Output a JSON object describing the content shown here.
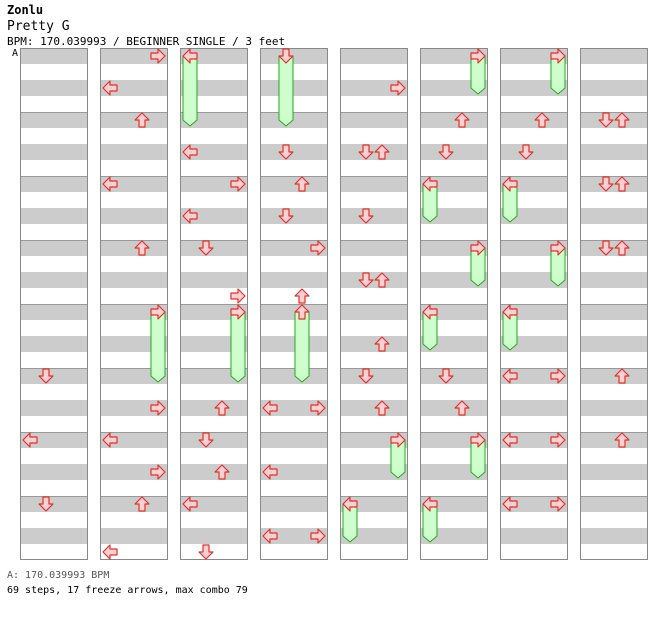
{
  "header": {
    "artist": "Zonlu",
    "title": "Pretty G",
    "info": "BPM: 170.039993 / BEGINNER SINGLE / 3 feet"
  },
  "bpm_marker": {
    "label": "A"
  },
  "footer": {
    "bpm_legend": "A: 170.039993 BPM",
    "stats": "69 steps, 17 freeze arrows, max combo 79"
  },
  "colors": {
    "stripe": "#cccccc",
    "lane_border": "#888888",
    "arrow_fill": "#ffd0d0",
    "arrow_stroke": "#e03030",
    "freeze_fill": "#ccffcc",
    "freeze_stroke": "#22aa22"
  },
  "chart_data": {
    "type": "step-chart",
    "columns": 8,
    "measures_per_column": 8,
    "lanes": [
      "left",
      "down",
      "up",
      "right"
    ],
    "notes": [
      {
        "c": 0,
        "m": 5,
        "b": 0,
        "d": "down"
      },
      {
        "c": 0,
        "m": 6,
        "b": 0,
        "d": "left"
      },
      {
        "c": 0,
        "m": 7,
        "b": 0,
        "d": "down"
      },
      {
        "c": 1,
        "m": 0,
        "b": 0,
        "d": "right"
      },
      {
        "c": 1,
        "m": 0,
        "b": 2,
        "d": "left"
      },
      {
        "c": 1,
        "m": 1,
        "b": 0,
        "d": "up"
      },
      {
        "c": 1,
        "m": 2,
        "b": 0,
        "d": "left"
      },
      {
        "c": 1,
        "m": 3,
        "b": 0,
        "d": "up"
      },
      {
        "c": 1,
        "m": 4,
        "b": 0,
        "d": "right",
        "len": 4
      },
      {
        "c": 1,
        "m": 5,
        "b": 2,
        "d": "right"
      },
      {
        "c": 1,
        "m": 6,
        "b": 0,
        "d": "left"
      },
      {
        "c": 1,
        "m": 6,
        "b": 2,
        "d": "right"
      },
      {
        "c": 1,
        "m": 7,
        "b": 0,
        "d": "up"
      },
      {
        "c": 1,
        "m": 7,
        "b": 3,
        "d": "left"
      },
      {
        "c": 2,
        "m": 0,
        "b": 0,
        "d": "left",
        "len": 4
      },
      {
        "c": 2,
        "m": 1,
        "b": 2,
        "d": "left"
      },
      {
        "c": 2,
        "m": 2,
        "b": 0,
        "d": "right"
      },
      {
        "c": 2,
        "m": 2,
        "b": 2,
        "d": "left"
      },
      {
        "c": 2,
        "m": 3,
        "b": 0,
        "d": "down"
      },
      {
        "c": 2,
        "m": 3,
        "b": 3,
        "d": "right"
      },
      {
        "c": 2,
        "m": 4,
        "b": 0,
        "d": "right",
        "len": 4
      },
      {
        "c": 2,
        "m": 5,
        "b": 2,
        "d": "up"
      },
      {
        "c": 2,
        "m": 6,
        "b": 0,
        "d": "down"
      },
      {
        "c": 2,
        "m": 6,
        "b": 2,
        "d": "up"
      },
      {
        "c": 2,
        "m": 7,
        "b": 0,
        "d": "left"
      },
      {
        "c": 2,
        "m": 7,
        "b": 3,
        "d": "down"
      },
      {
        "c": 3,
        "m": 0,
        "b": 0,
        "d": "down",
        "len": 4
      },
      {
        "c": 3,
        "m": 1,
        "b": 2,
        "d": "down"
      },
      {
        "c": 3,
        "m": 2,
        "b": 0,
        "d": "up"
      },
      {
        "c": 3,
        "m": 2,
        "b": 2,
        "d": "down"
      },
      {
        "c": 3,
        "m": 3,
        "b": 0,
        "d": "right"
      },
      {
        "c": 3,
        "m": 3,
        "b": 3,
        "d": "up"
      },
      {
        "c": 3,
        "m": 4,
        "b": 0,
        "d": "up",
        "len": 4
      },
      {
        "c": 3,
        "m": 5,
        "b": 2,
        "d": "left"
      },
      {
        "c": 3,
        "m": 5,
        "b": 2,
        "d": "right"
      },
      {
        "c": 3,
        "m": 6,
        "b": 2,
        "d": "left"
      },
      {
        "c": 3,
        "m": 7,
        "b": 2,
        "d": "left"
      },
      {
        "c": 3,
        "m": 7,
        "b": 2,
        "d": "right"
      },
      {
        "c": 4,
        "m": 0,
        "b": 2,
        "d": "right"
      },
      {
        "c": 4,
        "m": 1,
        "b": 2,
        "d": "down"
      },
      {
        "c": 4,
        "m": 1,
        "b": 2,
        "d": "up"
      },
      {
        "c": 4,
        "m": 2,
        "b": 2,
        "d": "down"
      },
      {
        "c": 4,
        "m": 3,
        "b": 2,
        "d": "down"
      },
      {
        "c": 4,
        "m": 3,
        "b": 2,
        "d": "up"
      },
      {
        "c": 4,
        "m": 4,
        "b": 2,
        "d": "up"
      },
      {
        "c": 4,
        "m": 5,
        "b": 0,
        "d": "down"
      },
      {
        "c": 4,
        "m": 5,
        "b": 2,
        "d": "up"
      },
      {
        "c": 4,
        "m": 6,
        "b": 0,
        "d": "right",
        "len": 2
      },
      {
        "c": 4,
        "m": 7,
        "b": 0,
        "d": "left",
        "len": 2
      },
      {
        "c": 5,
        "m": 0,
        "b": 0,
        "d": "right",
        "len": 2
      },
      {
        "c": 5,
        "m": 1,
        "b": 0,
        "d": "up"
      },
      {
        "c": 5,
        "m": 1,
        "b": 2,
        "d": "down"
      },
      {
        "c": 5,
        "m": 2,
        "b": 0,
        "d": "left",
        "len": 2
      },
      {
        "c": 5,
        "m": 3,
        "b": 0,
        "d": "right",
        "len": 2
      },
      {
        "c": 5,
        "m": 4,
        "b": 0,
        "d": "left",
        "len": 2
      },
      {
        "c": 5,
        "m": 5,
        "b": 0,
        "d": "down"
      },
      {
        "c": 5,
        "m": 5,
        "b": 2,
        "d": "up"
      },
      {
        "c": 5,
        "m": 6,
        "b": 0,
        "d": "right",
        "len": 2
      },
      {
        "c": 5,
        "m": 7,
        "b": 0,
        "d": "left",
        "len": 2
      },
      {
        "c": 6,
        "m": 0,
        "b": 0,
        "d": "right",
        "len": 2
      },
      {
        "c": 6,
        "m": 1,
        "b": 0,
        "d": "up"
      },
      {
        "c": 6,
        "m": 1,
        "b": 2,
        "d": "down"
      },
      {
        "c": 6,
        "m": 2,
        "b": 0,
        "d": "left",
        "len": 2
      },
      {
        "c": 6,
        "m": 3,
        "b": 0,
        "d": "right",
        "len": 2
      },
      {
        "c": 6,
        "m": 4,
        "b": 0,
        "d": "left",
        "len": 2
      },
      {
        "c": 6,
        "m": 5,
        "b": 0,
        "d": "left"
      },
      {
        "c": 6,
        "m": 5,
        "b": 0,
        "d": "right"
      },
      {
        "c": 6,
        "m": 6,
        "b": 0,
        "d": "left"
      },
      {
        "c": 6,
        "m": 6,
        "b": 0,
        "d": "right"
      },
      {
        "c": 6,
        "m": 7,
        "b": 0,
        "d": "left"
      },
      {
        "c": 6,
        "m": 7,
        "b": 0,
        "d": "right"
      },
      {
        "c": 7,
        "m": 1,
        "b": 0,
        "d": "down"
      },
      {
        "c": 7,
        "m": 1,
        "b": 0,
        "d": "up"
      },
      {
        "c": 7,
        "m": 2,
        "b": 0,
        "d": "down"
      },
      {
        "c": 7,
        "m": 2,
        "b": 0,
        "d": "up"
      },
      {
        "c": 7,
        "m": 3,
        "b": 0,
        "d": "down"
      },
      {
        "c": 7,
        "m": 3,
        "b": 0,
        "d": "up"
      },
      {
        "c": 7,
        "m": 5,
        "b": 0,
        "d": "up"
      },
      {
        "c": 7,
        "m": 6,
        "b": 0,
        "d": "up"
      }
    ]
  }
}
